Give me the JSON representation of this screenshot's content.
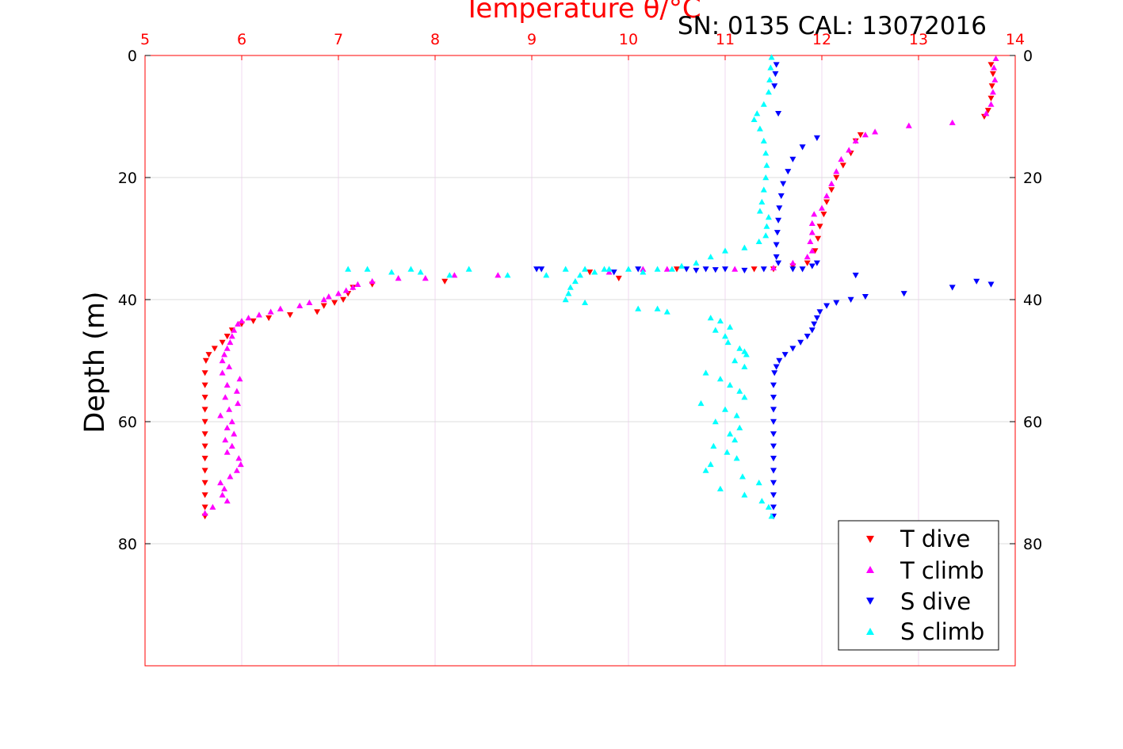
{
  "chart_data": {
    "type": "scatter",
    "title": "Temperature θ/°C",
    "subtitle": "SN: 0135  CAL: 13072016",
    "xlabel": "Temperature θ/°C",
    "ylabel": "Depth (m)",
    "xlim": [
      5,
      14
    ],
    "ylim": [
      100,
      0
    ],
    "x_axis_position": "top",
    "y_axis_reversed": true,
    "x_ticks": [
      "5",
      "6",
      "7",
      "8",
      "9",
      "10",
      "11",
      "12",
      "13",
      "14"
    ],
    "y_ticks": [
      "0",
      "20",
      "40",
      "60",
      "80"
    ],
    "grid": true,
    "legend_position": "bottom-right",
    "colors": {
      "x_axis": "#ff0000",
      "t_dive": "#ff0000",
      "t_climb": "#ff00ff",
      "s_dive": "#0000ff",
      "s_climb": "#00ffff"
    },
    "series": [
      {
        "name": "T dive",
        "marker": "triangle-down",
        "color": "#ff0000",
        "points": [
          [
            13.75,
            1.5
          ],
          [
            13.77,
            3
          ],
          [
            13.76,
            5
          ],
          [
            13.75,
            7
          ],
          [
            13.72,
            9
          ],
          [
            13.68,
            10
          ],
          [
            12.4,
            13
          ],
          [
            12.35,
            14
          ],
          [
            12.3,
            16
          ],
          [
            12.22,
            18
          ],
          [
            12.15,
            20
          ],
          [
            12.1,
            22
          ],
          [
            12.05,
            24
          ],
          [
            12.02,
            26
          ],
          [
            11.98,
            28
          ],
          [
            11.96,
            30
          ],
          [
            11.93,
            32
          ],
          [
            11.85,
            34
          ],
          [
            11.7,
            34.5
          ],
          [
            11.5,
            35
          ],
          [
            11.3,
            35
          ],
          [
            10.5,
            35
          ],
          [
            9.9,
            36.5
          ],
          [
            9.6,
            35.5
          ],
          [
            8.1,
            37
          ],
          [
            7.35,
            37.5
          ],
          [
            7.15,
            38
          ],
          [
            7.1,
            39
          ],
          [
            7.05,
            40
          ],
          [
            6.96,
            40.5
          ],
          [
            6.85,
            41
          ],
          [
            6.78,
            42
          ],
          [
            6.5,
            42.5
          ],
          [
            6.28,
            43
          ],
          [
            6.12,
            43.5
          ],
          [
            6.0,
            44
          ],
          [
            5.9,
            45
          ],
          [
            5.85,
            46
          ],
          [
            5.8,
            47
          ],
          [
            5.72,
            48
          ],
          [
            5.66,
            49
          ],
          [
            5.63,
            50
          ],
          [
            5.62,
            52
          ],
          [
            5.62,
            54
          ],
          [
            5.62,
            56
          ],
          [
            5.62,
            58
          ],
          [
            5.62,
            60
          ],
          [
            5.62,
            62
          ],
          [
            5.62,
            64
          ],
          [
            5.62,
            66
          ],
          [
            5.62,
            68
          ],
          [
            5.62,
            70
          ],
          [
            5.62,
            72
          ],
          [
            5.62,
            74
          ],
          [
            5.62,
            75.5
          ]
        ]
      },
      {
        "name": "T climb",
        "marker": "triangle-up",
        "color": "#ff00ff",
        "points": [
          [
            13.8,
            0.5
          ],
          [
            13.78,
            2
          ],
          [
            13.79,
            4
          ],
          [
            13.77,
            6
          ],
          [
            13.75,
            8
          ],
          [
            13.7,
            9.5
          ],
          [
            13.35,
            11
          ],
          [
            12.9,
            11.5
          ],
          [
            12.55,
            12.5
          ],
          [
            12.45,
            13
          ],
          [
            12.35,
            14
          ],
          [
            12.28,
            15.5
          ],
          [
            12.2,
            17
          ],
          [
            12.15,
            19
          ],
          [
            12.1,
            21
          ],
          [
            12.05,
            23
          ],
          [
            12.0,
            25
          ],
          [
            11.92,
            26
          ],
          [
            11.9,
            27.5
          ],
          [
            11.9,
            29
          ],
          [
            11.88,
            30.5
          ],
          [
            11.9,
            32
          ],
          [
            11.85,
            33
          ],
          [
            11.7,
            34
          ],
          [
            11.5,
            34.8
          ],
          [
            11.1,
            35
          ],
          [
            10.4,
            35
          ],
          [
            10.15,
            35
          ],
          [
            9.8,
            35.5
          ],
          [
            8.65,
            36
          ],
          [
            8.2,
            36
          ],
          [
            7.9,
            36.5
          ],
          [
            7.62,
            36.5
          ],
          [
            7.35,
            37
          ],
          [
            7.2,
            37.5
          ],
          [
            7.15,
            38
          ],
          [
            7.08,
            38.5
          ],
          [
            7.0,
            39
          ],
          [
            6.9,
            39.5
          ],
          [
            6.85,
            40
          ],
          [
            6.7,
            40.5
          ],
          [
            6.6,
            41
          ],
          [
            6.4,
            41.5
          ],
          [
            6.3,
            42
          ],
          [
            6.18,
            42.5
          ],
          [
            6.07,
            43
          ],
          [
            6.0,
            43.5
          ],
          [
            5.96,
            44
          ],
          [
            5.92,
            45
          ],
          [
            5.9,
            46
          ],
          [
            5.88,
            47
          ],
          [
            5.85,
            48
          ],
          [
            5.82,
            49
          ],
          [
            5.8,
            50
          ],
          [
            5.87,
            51
          ],
          [
            5.8,
            52
          ],
          [
            5.98,
            53
          ],
          [
            5.85,
            54
          ],
          [
            5.95,
            55
          ],
          [
            5.83,
            56
          ],
          [
            5.96,
            57
          ],
          [
            5.87,
            58
          ],
          [
            5.78,
            59
          ],
          [
            5.9,
            60
          ],
          [
            5.85,
            61
          ],
          [
            5.92,
            62
          ],
          [
            5.83,
            63
          ],
          [
            5.9,
            64
          ],
          [
            5.85,
            65
          ],
          [
            5.97,
            66
          ],
          [
            5.99,
            67
          ],
          [
            5.95,
            68
          ],
          [
            5.88,
            69
          ],
          [
            5.78,
            70
          ],
          [
            5.82,
            71
          ],
          [
            5.8,
            72
          ],
          [
            5.85,
            73
          ],
          [
            5.7,
            74
          ],
          [
            5.62,
            75
          ]
        ]
      },
      {
        "name": "S dive",
        "marker": "triangle-down",
        "color": "#0000ff",
        "points": [
          [
            11.53,
            1.5
          ],
          [
            11.52,
            3
          ],
          [
            11.51,
            5
          ],
          [
            11.55,
            9.5
          ],
          [
            11.95,
            13.5
          ],
          [
            11.8,
            15
          ],
          [
            11.7,
            17
          ],
          [
            11.65,
            19
          ],
          [
            11.6,
            21
          ],
          [
            11.58,
            23
          ],
          [
            11.56,
            25
          ],
          [
            11.55,
            27
          ],
          [
            11.54,
            29
          ],
          [
            11.53,
            31
          ],
          [
            11.53,
            33
          ],
          [
            11.55,
            34
          ],
          [
            11.7,
            35
          ],
          [
            11.8,
            35
          ],
          [
            11.9,
            34.5
          ],
          [
            11.95,
            34
          ],
          [
            11.4,
            35
          ],
          [
            11.2,
            35.2
          ],
          [
            11.0,
            35
          ],
          [
            10.9,
            35.1
          ],
          [
            10.8,
            35
          ],
          [
            10.7,
            35.2
          ],
          [
            10.6,
            35
          ],
          [
            10.1,
            35
          ],
          [
            9.85,
            35.5
          ],
          [
            9.1,
            35
          ],
          [
            9.05,
            35
          ],
          [
            12.35,
            36
          ],
          [
            13.35,
            38
          ],
          [
            13.6,
            37
          ],
          [
            13.75,
            37.5
          ],
          [
            12.85,
            39
          ],
          [
            12.45,
            39.5
          ],
          [
            12.3,
            40
          ],
          [
            12.15,
            40.5
          ],
          [
            12.05,
            41
          ],
          [
            11.98,
            42
          ],
          [
            11.95,
            43
          ],
          [
            11.92,
            44
          ],
          [
            11.9,
            45
          ],
          [
            11.85,
            46
          ],
          [
            11.78,
            47
          ],
          [
            11.7,
            48
          ],
          [
            11.62,
            49
          ],
          [
            11.56,
            50
          ],
          [
            11.53,
            51
          ],
          [
            11.51,
            52
          ],
          [
            11.5,
            54
          ],
          [
            11.5,
            56
          ],
          [
            11.5,
            58
          ],
          [
            11.5,
            60
          ],
          [
            11.5,
            62
          ],
          [
            11.5,
            64
          ],
          [
            11.5,
            66
          ],
          [
            11.5,
            68
          ],
          [
            11.5,
            70
          ],
          [
            11.5,
            72
          ],
          [
            11.5,
            74
          ],
          [
            11.5,
            75.5
          ]
        ]
      },
      {
        "name": "S climb",
        "marker": "triangle-up",
        "color": "#00ffff",
        "points": [
          [
            11.48,
            0.3
          ],
          [
            11.47,
            2
          ],
          [
            11.46,
            4
          ],
          [
            11.45,
            6
          ],
          [
            11.4,
            8
          ],
          [
            11.33,
            9.5
          ],
          [
            11.3,
            10.5
          ],
          [
            11.36,
            12
          ],
          [
            11.4,
            14
          ],
          [
            11.42,
            16
          ],
          [
            11.43,
            18
          ],
          [
            11.42,
            20
          ],
          [
            11.4,
            22
          ],
          [
            11.38,
            24
          ],
          [
            11.36,
            25.5
          ],
          [
            11.45,
            26.5
          ],
          [
            11.43,
            28
          ],
          [
            11.42,
            29.5
          ],
          [
            11.35,
            30.5
          ],
          [
            11.2,
            31.5
          ],
          [
            11.0,
            32
          ],
          [
            10.85,
            33
          ],
          [
            10.7,
            34
          ],
          [
            10.55,
            34.5
          ],
          [
            10.45,
            35
          ],
          [
            10.3,
            35
          ],
          [
            10.15,
            35.5
          ],
          [
            10.0,
            35
          ],
          [
            9.8,
            35
          ],
          [
            9.65,
            35.5
          ],
          [
            9.5,
            36
          ],
          [
            9.45,
            37
          ],
          [
            9.4,
            38
          ],
          [
            9.38,
            39
          ],
          [
            9.35,
            40
          ],
          [
            9.55,
            40.5
          ],
          [
            9.75,
            35
          ],
          [
            9.55,
            35
          ],
          [
            9.35,
            35
          ],
          [
            9.15,
            36
          ],
          [
            8.75,
            36
          ],
          [
            8.35,
            35
          ],
          [
            8.15,
            36
          ],
          [
            7.85,
            35.5
          ],
          [
            7.75,
            35
          ],
          [
            7.55,
            35.5
          ],
          [
            7.3,
            35
          ],
          [
            7.1,
            35
          ],
          [
            10.1,
            41.5
          ],
          [
            10.3,
            41.5
          ],
          [
            10.4,
            42
          ],
          [
            10.85,
            43
          ],
          [
            10.95,
            43.5
          ],
          [
            11.05,
            44.5
          ],
          [
            10.9,
            45
          ],
          [
            11.0,
            46
          ],
          [
            11.03,
            47
          ],
          [
            11.15,
            48
          ],
          [
            11.2,
            48.5
          ],
          [
            11.22,
            49
          ],
          [
            11.1,
            50
          ],
          [
            11.2,
            51
          ],
          [
            10.8,
            52
          ],
          [
            10.95,
            53
          ],
          [
            11.05,
            54
          ],
          [
            11.15,
            55
          ],
          [
            11.2,
            56
          ],
          [
            10.75,
            57
          ],
          [
            11.0,
            58
          ],
          [
            11.12,
            59
          ],
          [
            10.9,
            60
          ],
          [
            11.15,
            61
          ],
          [
            11.05,
            62
          ],
          [
            11.1,
            63
          ],
          [
            10.88,
            64
          ],
          [
            11.02,
            65
          ],
          [
            11.12,
            66
          ],
          [
            10.85,
            67
          ],
          [
            10.8,
            68
          ],
          [
            11.18,
            69
          ],
          [
            11.35,
            70
          ],
          [
            10.95,
            71
          ],
          [
            11.2,
            72
          ],
          [
            11.38,
            73
          ],
          [
            11.45,
            74
          ],
          [
            11.48,
            75.5
          ]
        ]
      }
    ]
  }
}
